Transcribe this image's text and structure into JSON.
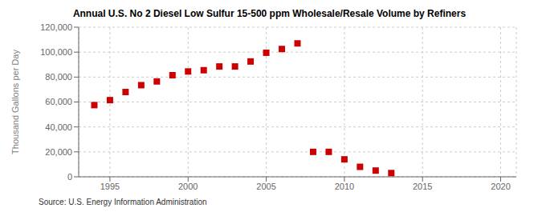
{
  "chart_data": {
    "type": "scatter",
    "title": "Annual U.S. No 2 Diesel Low Sulfur 15-500 ppm Wholesale/Resale Volume by Refiners",
    "y_label": "Thousand Gallons per Day",
    "annotations": [
      "Source: U.S. Energy Information Administration"
    ],
    "x": [
      1994,
      1995,
      1996,
      1997,
      1998,
      1999,
      2000,
      2001,
      2002,
      2003,
      2004,
      2005,
      2006,
      2007,
      2008,
      2009,
      2010,
      2011,
      2012,
      2013
    ],
    "values": [
      57500,
      61500,
      68000,
      73500,
      76500,
      81500,
      84500,
      85500,
      88500,
      88500,
      92500,
      99500,
      102500,
      107000,
      20000,
      20000,
      14000,
      8000,
      5000,
      3000
    ],
    "color": "#cc0000",
    "marker": "square",
    "xlim": [
      1993,
      2021
    ],
    "xticks": [
      1995,
      2000,
      2005,
      2010,
      2015,
      2020
    ],
    "ylim": [
      0,
      120000
    ],
    "yticks": [
      0,
      {
        "value": 20000,
        "label": "20,000"
      },
      {
        "value": 40000,
        "label": "40,000"
      },
      {
        "value": 60000,
        "label": "60,000"
      },
      {
        "value": 80000,
        "label": "80,000"
      },
      {
        "value": 100000,
        "label": "100,000"
      },
      {
        "value": 120000,
        "label": "120,000"
      }
    ],
    "grid": true
  }
}
